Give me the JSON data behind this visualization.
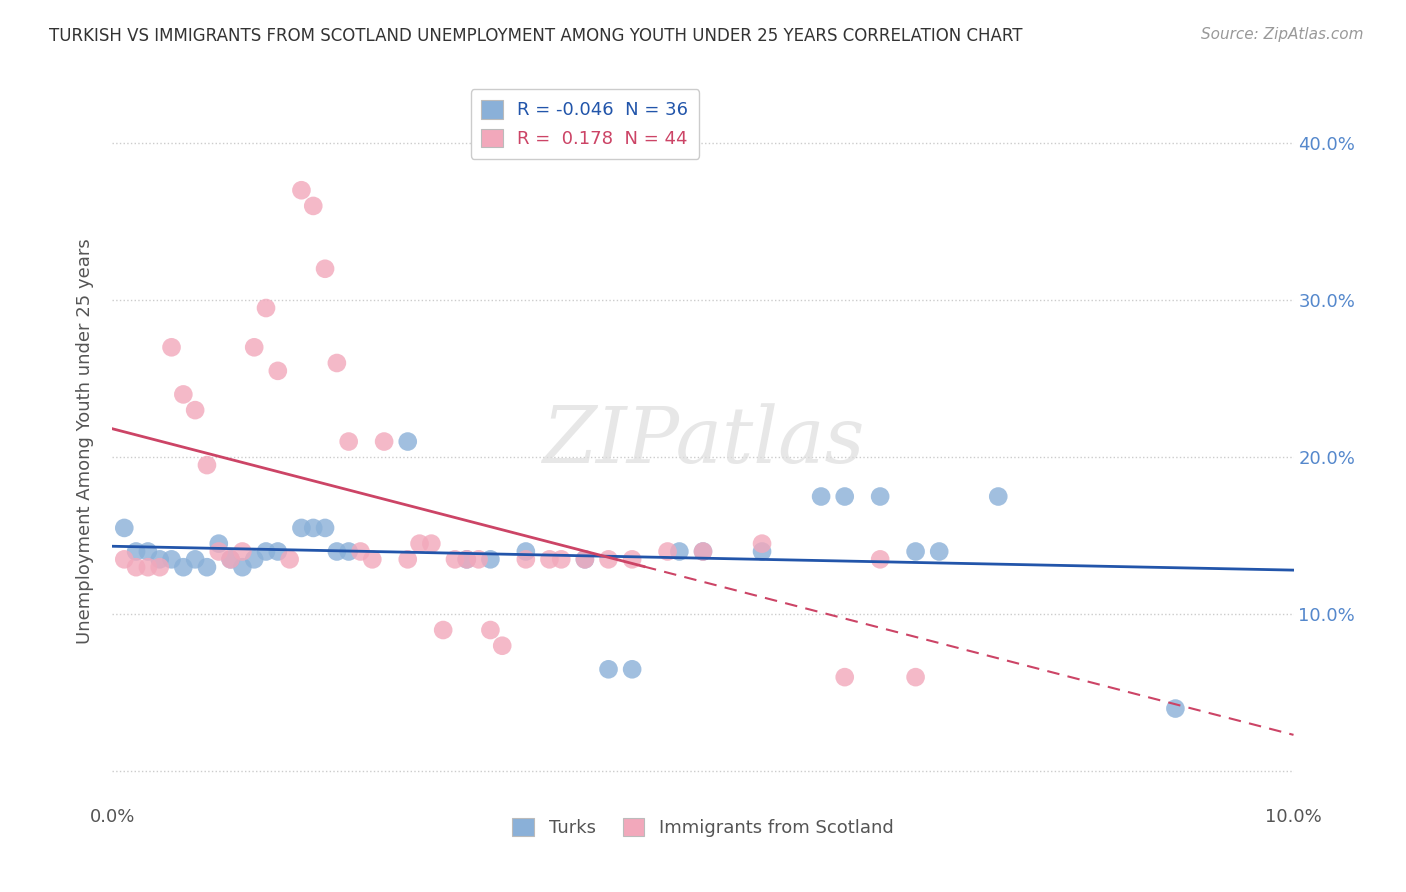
{
  "title": "TURKISH VS IMMIGRANTS FROM SCOTLAND UNEMPLOYMENT AMONG YOUTH UNDER 25 YEARS CORRELATION CHART",
  "source": "Source: ZipAtlas.com",
  "ylabel": "Unemployment Among Youth under 25 years",
  "xlabel": "",
  "xlim": [
    0.0,
    0.1
  ],
  "ylim": [
    -0.02,
    0.44
  ],
  "yticks": [
    0.0,
    0.1,
    0.2,
    0.3,
    0.4
  ],
  "ytick_labels_left": [
    "",
    "",
    "",
    "",
    ""
  ],
  "ytick_labels_right": [
    "",
    "10.0%",
    "20.0%",
    "30.0%",
    "40.0%"
  ],
  "xticks": [
    0.0,
    0.02,
    0.04,
    0.06,
    0.08,
    0.1
  ],
  "xtick_labels": [
    "0.0%",
    "",
    "",
    "",
    "",
    "10.0%"
  ],
  "turks_R": "-0.046",
  "turks_N": "36",
  "scotland_R": "0.178",
  "scotland_N": "44",
  "turks_color": "#8ab0d8",
  "scotland_color": "#f2a8bb",
  "turks_line_color": "#2255aa",
  "scotland_line_color": "#cc4466",
  "watermark": "ZIPatlas",
  "turks_x": [
    0.001,
    0.002,
    0.003,
    0.004,
    0.005,
    0.006,
    0.007,
    0.008,
    0.009,
    0.01,
    0.011,
    0.012,
    0.013,
    0.014,
    0.016,
    0.017,
    0.018,
    0.019,
    0.02,
    0.025,
    0.03,
    0.032,
    0.035,
    0.04,
    0.042,
    0.044,
    0.048,
    0.05,
    0.055,
    0.06,
    0.062,
    0.065,
    0.068,
    0.07,
    0.075,
    0.09
  ],
  "turks_y": [
    0.155,
    0.14,
    0.14,
    0.135,
    0.135,
    0.13,
    0.135,
    0.13,
    0.145,
    0.135,
    0.13,
    0.135,
    0.14,
    0.14,
    0.155,
    0.155,
    0.155,
    0.14,
    0.14,
    0.21,
    0.135,
    0.135,
    0.14,
    0.135,
    0.065,
    0.065,
    0.14,
    0.14,
    0.14,
    0.175,
    0.175,
    0.175,
    0.14,
    0.14,
    0.175,
    0.04
  ],
  "scotland_x": [
    0.001,
    0.002,
    0.003,
    0.004,
    0.005,
    0.006,
    0.007,
    0.008,
    0.009,
    0.01,
    0.011,
    0.012,
    0.013,
    0.014,
    0.015,
    0.016,
    0.017,
    0.018,
    0.019,
    0.02,
    0.021,
    0.022,
    0.023,
    0.025,
    0.026,
    0.027,
    0.028,
    0.029,
    0.03,
    0.031,
    0.032,
    0.033,
    0.035,
    0.037,
    0.038,
    0.04,
    0.042,
    0.044,
    0.047,
    0.05,
    0.055,
    0.062,
    0.065,
    0.068
  ],
  "scotland_y": [
    0.135,
    0.13,
    0.13,
    0.13,
    0.27,
    0.24,
    0.23,
    0.195,
    0.14,
    0.135,
    0.14,
    0.27,
    0.295,
    0.255,
    0.135,
    0.37,
    0.36,
    0.32,
    0.26,
    0.21,
    0.14,
    0.135,
    0.21,
    0.135,
    0.145,
    0.145,
    0.09,
    0.135,
    0.135,
    0.135,
    0.09,
    0.08,
    0.135,
    0.135,
    0.135,
    0.135,
    0.135,
    0.135,
    0.14,
    0.14,
    0.145,
    0.06,
    0.135,
    0.06
  ]
}
